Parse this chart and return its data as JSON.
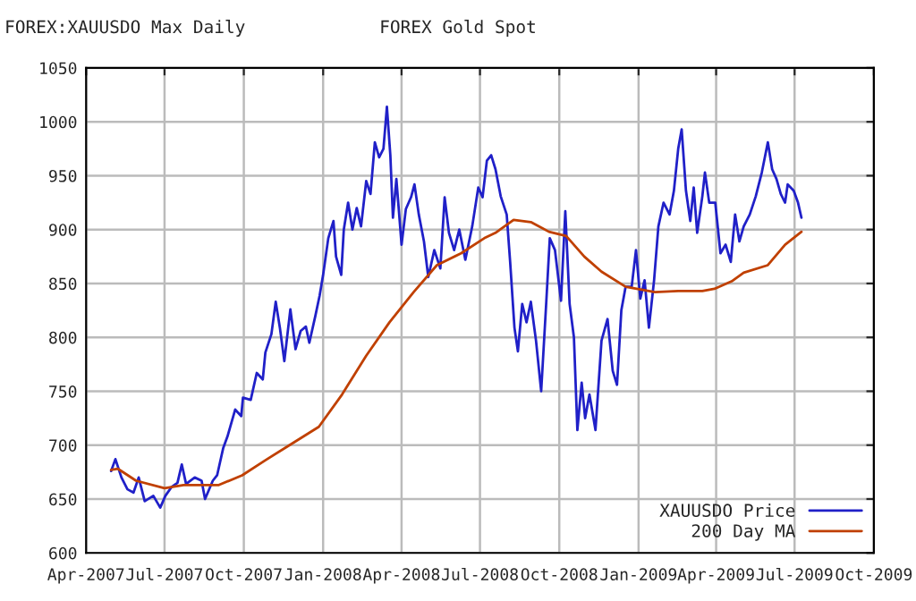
{
  "chart_data": {
    "type": "line",
    "title": "FOREX Gold Spot",
    "annotations": [
      "FOREX:XAUUSDO Max Daily"
    ],
    "xlim": [
      "2007-04-01",
      "2009-10-01"
    ],
    "xticks": [
      {
        "value": "2007-04-01",
        "label": "Apr-2007"
      },
      {
        "value": "2007-07-01",
        "label": "Jul-2007"
      },
      {
        "value": "2007-10-01",
        "label": "Oct-2007"
      },
      {
        "value": "2008-01-01",
        "label": "Jan-2008"
      },
      {
        "value": "2008-04-01",
        "label": "Apr-2008"
      },
      {
        "value": "2008-07-01",
        "label": "Jul-2008"
      },
      {
        "value": "2008-10-01",
        "label": "Oct-2008"
      },
      {
        "value": "2009-01-01",
        "label": "Jan-2009"
      },
      {
        "value": "2009-04-01",
        "label": "Apr-2009"
      },
      {
        "value": "2009-07-01",
        "label": "Jul-2009"
      },
      {
        "value": "2009-10-01",
        "label": "Oct-2009"
      }
    ],
    "ylim": [
      600,
      1050
    ],
    "yticks": [
      600,
      650,
      700,
      750,
      800,
      850,
      900,
      950,
      1000,
      1050
    ],
    "grid": true,
    "legend": "bottom right",
    "line_style": "solid",
    "marker": "none",
    "series": [
      {
        "name": "XAUUSDO Price",
        "color": "#2020c8",
        "x": [
          "2007-04-30",
          "2007-05-05",
          "2007-05-12",
          "2007-05-19",
          "2007-05-26",
          "2007-06-01",
          "2007-06-08",
          "2007-06-18",
          "2007-06-26",
          "2007-07-02",
          "2007-07-09",
          "2007-07-16",
          "2007-07-21",
          "2007-07-26",
          "2007-08-05",
          "2007-08-13",
          "2007-08-17",
          "2007-08-26",
          "2007-08-31",
          "2007-09-07",
          "2007-09-12",
          "2007-09-21",
          "2007-09-28",
          "2007-09-30",
          "2007-10-09",
          "2007-10-16",
          "2007-10-23",
          "2007-10-26",
          "2007-11-02",
          "2007-11-07",
          "2007-11-12",
          "2007-11-17",
          "2007-11-24",
          "2007-11-30",
          "2007-12-06",
          "2007-12-12",
          "2007-12-16",
          "2007-12-23",
          "2007-12-28",
          "2008-01-01",
          "2008-01-07",
          "2008-01-13",
          "2008-01-16",
          "2008-01-22",
          "2008-01-25",
          "2008-01-30",
          "2008-02-04",
          "2008-02-09",
          "2008-02-14",
          "2008-02-20",
          "2008-02-25",
          "2008-03-01",
          "2008-03-06",
          "2008-03-11",
          "2008-03-15",
          "2008-03-19",
          "2008-03-22",
          "2008-03-26",
          "2008-04-01",
          "2008-04-06",
          "2008-04-12",
          "2008-04-16",
          "2008-04-21",
          "2008-04-27",
          "2008-05-02",
          "2008-05-09",
          "2008-05-16",
          "2008-05-21",
          "2008-05-26",
          "2008-06-01",
          "2008-06-07",
          "2008-06-14",
          "2008-06-22",
          "2008-06-29",
          "2008-07-04",
          "2008-07-09",
          "2008-07-14",
          "2008-07-19",
          "2008-07-25",
          "2008-08-01",
          "2008-08-05",
          "2008-08-10",
          "2008-08-14",
          "2008-08-19",
          "2008-08-24",
          "2008-08-29",
          "2008-09-04",
          "2008-09-10",
          "2008-09-16",
          "2008-09-20",
          "2008-09-26",
          "2008-10-03",
          "2008-10-08",
          "2008-10-13",
          "2008-10-18",
          "2008-10-22",
          "2008-10-27",
          "2008-10-31",
          "2008-11-05",
          "2008-11-12",
          "2008-11-19",
          "2008-11-26",
          "2008-12-02",
          "2008-12-07",
          "2008-12-12",
          "2008-12-17",
          "2008-12-24",
          "2008-12-29",
          "2009-01-03",
          "2009-01-08",
          "2009-01-13",
          "2009-01-19",
          "2009-01-24",
          "2009-01-30",
          "2009-02-06",
          "2009-02-11",
          "2009-02-16",
          "2009-02-20",
          "2009-02-25",
          "2009-03-02",
          "2009-03-06",
          "2009-03-10",
          "2009-03-16",
          "2009-03-19",
          "2009-03-24",
          "2009-03-31",
          "2009-04-06",
          "2009-04-12",
          "2009-04-18",
          "2009-04-23",
          "2009-04-28",
          "2009-05-03",
          "2009-05-10",
          "2009-05-17",
          "2009-05-24",
          "2009-05-31",
          "2009-06-05",
          "2009-06-10",
          "2009-06-15",
          "2009-06-20",
          "2009-06-23",
          "2009-06-30",
          "2009-07-05",
          "2009-07-09"
        ],
        "values": [
          676,
          687,
          670,
          659,
          656,
          670,
          648,
          653,
          642,
          653,
          661,
          665,
          682,
          664,
          670,
          667,
          650,
          667,
          672,
          697,
          708,
          733,
          727,
          744,
          742,
          767,
          761,
          786,
          803,
          833,
          808,
          778,
          826,
          789,
          806,
          810,
          795,
          820,
          839,
          858,
          892,
          908,
          875,
          858,
          900,
          925,
          900,
          920,
          903,
          945,
          933,
          981,
          967,
          975,
          1014,
          969,
          911,
          947,
          886,
          919,
          930,
          942,
          914,
          889,
          856,
          881,
          864,
          930,
          897,
          881,
          900,
          872,
          903,
          939,
          930,
          964,
          969,
          956,
          931,
          914,
          870,
          809,
          787,
          831,
          814,
          833,
          797,
          750,
          834,
          892,
          881,
          834,
          917,
          831,
          800,
          714,
          758,
          725,
          747,
          714,
          797,
          817,
          769,
          756,
          825,
          847,
          847,
          881,
          836,
          853,
          809,
          853,
          903,
          925,
          914,
          936,
          975,
          993,
          936,
          908,
          939,
          897,
          931,
          953,
          925,
          925,
          878,
          886,
          870,
          914,
          889,
          903,
          914,
          931,
          953,
          981,
          956,
          947,
          933,
          925,
          942,
          936,
          925,
          911
        ]
      },
      {
        "name": "200 Day MA",
        "color": "#c04000",
        "x": [
          "2007-04-30",
          "2007-05-08",
          "2007-05-29",
          "2007-07-01",
          "2007-07-23",
          "2007-09-02",
          "2007-09-29",
          "2007-10-26",
          "2007-11-23",
          "2007-12-27",
          "2008-01-23",
          "2008-02-20",
          "2008-03-18",
          "2008-04-15",
          "2008-05-12",
          "2008-06-09",
          "2008-07-06",
          "2008-07-19",
          "2008-08-09",
          "2008-08-29",
          "2008-09-19",
          "2008-10-09",
          "2008-10-30",
          "2008-11-19",
          "2008-12-17",
          "2009-01-20",
          "2009-02-16",
          "2009-03-16",
          "2009-03-30",
          "2009-04-19",
          "2009-05-03",
          "2009-05-31",
          "2009-06-20",
          "2009-07-09"
        ],
        "values": [
          677,
          678,
          667,
          660,
          663,
          663,
          672,
          686,
          700,
          717,
          747,
          783,
          814,
          842,
          867,
          878,
          892,
          897,
          909,
          907,
          898,
          894,
          875,
          861,
          847,
          842,
          843,
          843,
          845,
          852,
          860,
          867,
          886,
          898
        ]
      }
    ]
  }
}
